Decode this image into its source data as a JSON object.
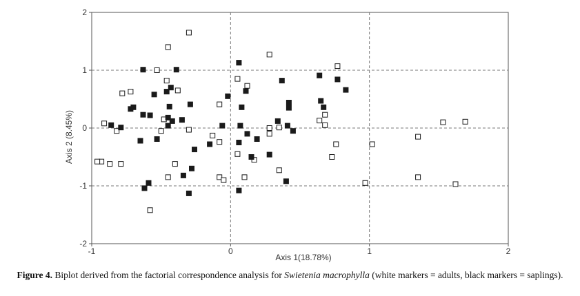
{
  "chart_data": {
    "type": "scatter",
    "xlabel": "Axis 1(18.78%)",
    "ylabel": "Axis 2 (8.45%)",
    "xlim": [
      -1,
      2
    ],
    "ylim": [
      -2,
      2
    ],
    "x_ticks": [
      "-1",
      "0",
      "1",
      "2"
    ],
    "y_ticks": [
      "2",
      "1",
      "0",
      "-1",
      "-2"
    ],
    "grid": "dashed reference lines at x=0, x=1, y=1, y=0, y=-1",
    "colors": {
      "adults": "#ffffff",
      "saplings": "#1a1a1a",
      "grid": "#777777",
      "frame": "#555555"
    },
    "series": [
      {
        "name": "adults",
        "marker": "white square",
        "points": [
          [
            -0.3,
            1.65
          ],
          [
            -0.45,
            1.4
          ],
          [
            -0.53,
            1.0
          ],
          [
            -0.46,
            0.82
          ],
          [
            -0.38,
            0.65
          ],
          [
            -0.72,
            0.63
          ],
          [
            -0.78,
            0.6
          ],
          [
            -0.91,
            0.08
          ],
          [
            -0.82,
            -0.05
          ],
          [
            -0.5,
            -0.05
          ],
          [
            -0.48,
            0.15
          ],
          [
            -0.3,
            -0.03
          ],
          [
            -0.13,
            -0.13
          ],
          [
            -0.08,
            0.41
          ],
          [
            -0.08,
            -0.24
          ],
          [
            -0.93,
            -0.58
          ],
          [
            -0.96,
            -0.58
          ],
          [
            -0.87,
            -0.62
          ],
          [
            -0.79,
            -0.62
          ],
          [
            -0.4,
            -0.62
          ],
          [
            -0.45,
            -0.85
          ],
          [
            -0.08,
            -0.85
          ],
          [
            -0.05,
            -0.9
          ],
          [
            -0.58,
            -1.42
          ],
          [
            0.05,
            0.85
          ],
          [
            0.12,
            0.73
          ],
          [
            0.05,
            -0.45
          ],
          [
            0.17,
            -0.55
          ],
          [
            0.28,
            1.27
          ],
          [
            0.28,
            0.0
          ],
          [
            0.28,
            -0.1
          ],
          [
            0.35,
            0.01
          ],
          [
            0.35,
            -0.73
          ],
          [
            0.1,
            -0.85
          ],
          [
            0.77,
            1.07
          ],
          [
            0.64,
            0.13
          ],
          [
            0.68,
            0.23
          ],
          [
            0.68,
            0.05
          ],
          [
            0.76,
            -0.28
          ],
          [
            0.73,
            -0.5
          ],
          [
            1.02,
            -0.28
          ],
          [
            0.97,
            -0.95
          ],
          [
            1.35,
            -0.15
          ],
          [
            1.35,
            -0.85
          ],
          [
            1.53,
            0.1
          ],
          [
            1.69,
            0.11
          ],
          [
            1.62,
            -0.97
          ]
        ]
      },
      {
        "name": "saplings",
        "marker": "black square",
        "points": [
          [
            -0.63,
            1.01
          ],
          [
            -0.39,
            1.01
          ],
          [
            -0.55,
            0.58
          ],
          [
            -0.46,
            0.63
          ],
          [
            -0.43,
            0.7
          ],
          [
            -0.72,
            0.33
          ],
          [
            -0.7,
            0.36
          ],
          [
            -0.63,
            0.23
          ],
          [
            -0.58,
            0.22
          ],
          [
            -0.44,
            0.37
          ],
          [
            -0.45,
            0.18
          ],
          [
            -0.42,
            0.12
          ],
          [
            -0.35,
            0.14
          ],
          [
            -0.29,
            0.41
          ],
          [
            -0.86,
            0.05
          ],
          [
            -0.79,
            0.01
          ],
          [
            -0.65,
            -0.22
          ],
          [
            -0.53,
            -0.19
          ],
          [
            -0.45,
            0.04
          ],
          [
            -0.26,
            -0.37
          ],
          [
            -0.15,
            -0.28
          ],
          [
            -0.02,
            0.55
          ],
          [
            -0.06,
            0.04
          ],
          [
            -0.28,
            -0.7
          ],
          [
            -0.34,
            -0.82
          ],
          [
            -0.62,
            -1.04
          ],
          [
            -0.59,
            -0.95
          ],
          [
            -0.3,
            -1.13
          ],
          [
            0.06,
            1.13
          ],
          [
            0.08,
            0.36
          ],
          [
            0.11,
            0.64
          ],
          [
            0.07,
            0.04
          ],
          [
            0.06,
            -0.25
          ],
          [
            0.12,
            -0.1
          ],
          [
            0.15,
            -0.5
          ],
          [
            0.19,
            -0.19
          ],
          [
            0.28,
            -0.46
          ],
          [
            0.37,
            0.82
          ],
          [
            0.34,
            0.12
          ],
          [
            0.42,
            0.44
          ],
          [
            0.42,
            0.35
          ],
          [
            0.41,
            0.04
          ],
          [
            0.45,
            -0.05
          ],
          [
            0.4,
            -0.92
          ],
          [
            0.06,
            -1.08
          ],
          [
            0.64,
            0.91
          ],
          [
            0.65,
            0.47
          ],
          [
            0.67,
            0.36
          ],
          [
            0.77,
            0.84
          ],
          [
            0.83,
            0.66
          ]
        ]
      }
    ]
  },
  "caption": {
    "label": "Figure 4.",
    "before": " Biplot derived from the factorial correspondence analysis for ",
    "species": "Swietenia macrophylla",
    "after": " (white markers = adults, black markers = saplings)."
  }
}
